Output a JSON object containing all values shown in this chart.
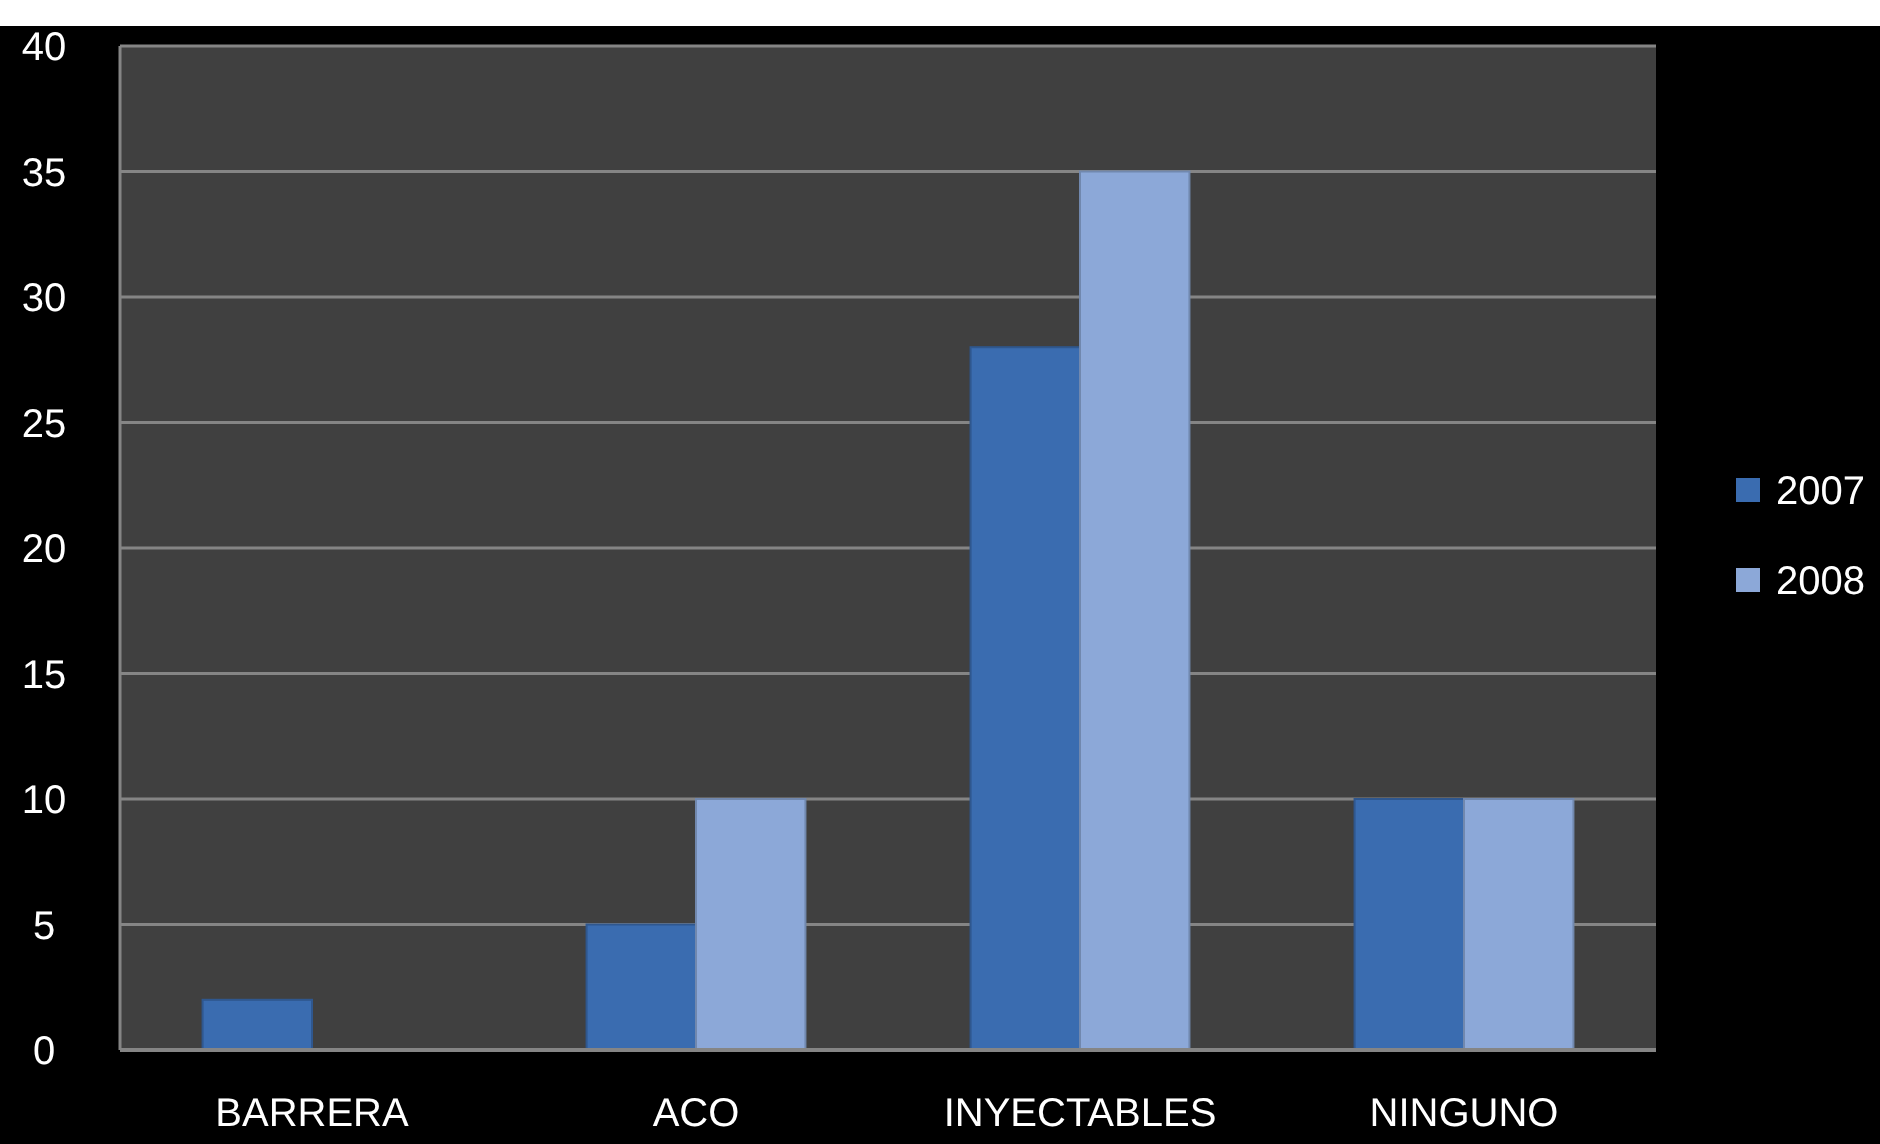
{
  "chart_data": {
    "type": "bar",
    "categories": [
      "BARRERA",
      "ACO",
      "INYECTABLES",
      "NINGUNO"
    ],
    "series": [
      {
        "name": "2007",
        "color": "#3a6cb0",
        "values": [
          2,
          5,
          28,
          10
        ]
      },
      {
        "name": "2008",
        "color": "#8ca8d8",
        "values": [
          null,
          10,
          35,
          10
        ]
      }
    ],
    "ylim": [
      0,
      40
    ],
    "yticks": [
      0,
      5,
      10,
      15,
      20,
      25,
      30,
      35,
      40
    ],
    "grid": true,
    "legend": "right"
  }
}
